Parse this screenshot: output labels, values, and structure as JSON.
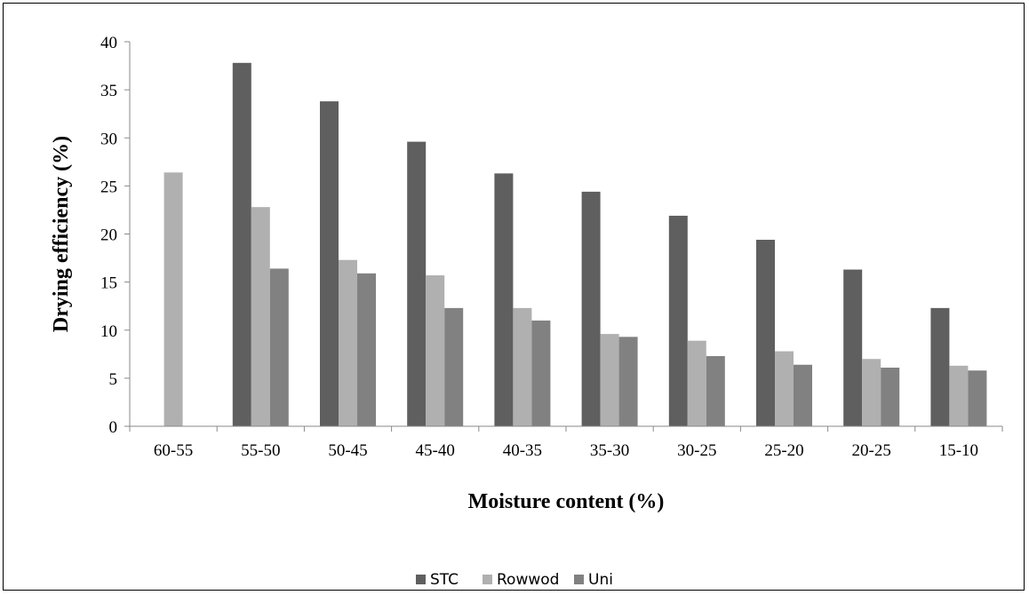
{
  "chart_data": {
    "type": "bar",
    "categories": [
      "60-55",
      "55-50",
      "50-45",
      "45-40",
      "40-35",
      "35-30",
      "30-25",
      "25-20",
      "20-25",
      "15-10"
    ],
    "series": [
      {
        "name": "STC",
        "color": "#5f5f5f",
        "values": [
          null,
          37.8,
          33.8,
          29.6,
          26.3,
          24.4,
          21.9,
          19.4,
          16.3,
          12.3
        ]
      },
      {
        "name": "Rowwod",
        "color": "#b0b0b0",
        "values": [
          26.4,
          22.8,
          17.3,
          15.7,
          12.3,
          9.6,
          8.9,
          7.8,
          7.0,
          6.3
        ]
      },
      {
        "name": "Uni",
        "color": "#818181",
        "values": [
          null,
          16.4,
          15.9,
          12.3,
          11.0,
          9.3,
          7.3,
          6.4,
          6.1,
          5.8
        ]
      }
    ],
    "xlabel": "Moisture content (%)",
    "ylabel": "Drying efficiency (%)",
    "ylim": [
      0,
      40
    ],
    "yticks": [
      "0",
      "5",
      "10",
      "15",
      "20",
      "25",
      "30",
      "35",
      "40"
    ],
    "grid": false,
    "legend_position": "bottom"
  }
}
